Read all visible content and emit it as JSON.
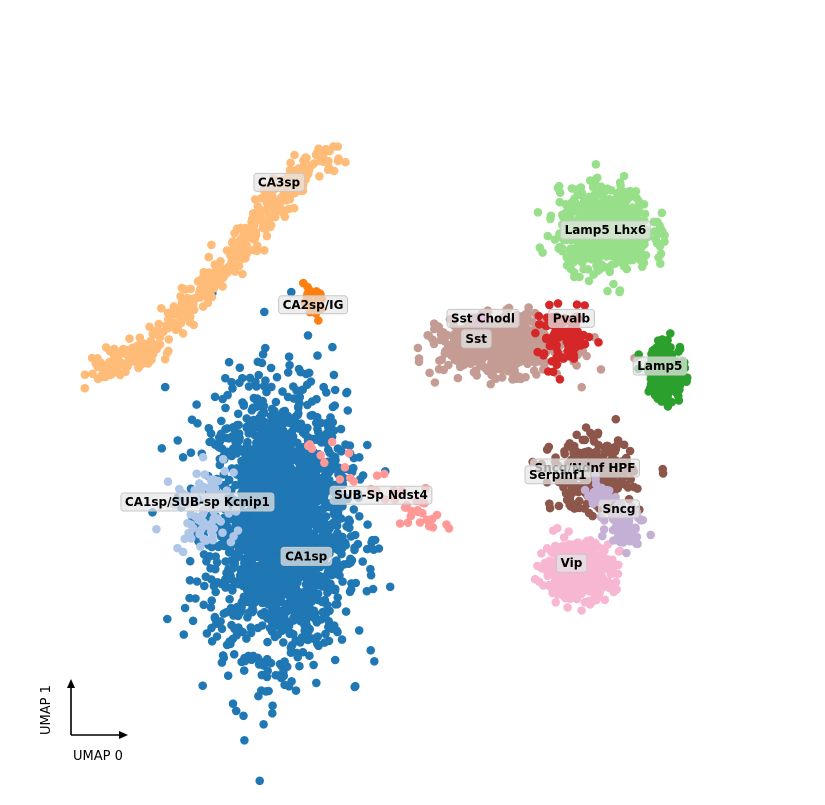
{
  "chart_data": {
    "type": "scatter",
    "title": "",
    "xlabel": "UMAP 0",
    "ylabel": "UMAP 1",
    "xlim": [
      0,
      10
    ],
    "ylim": [
      0,
      10
    ],
    "grid": false,
    "legend": "on-data",
    "clusters": [
      {
        "name": "CA3sp",
        "color": "#ffbb78",
        "center": [
          2.6,
          8.0
        ],
        "count": 420,
        "shape": "streak",
        "path": [
          [
            0.3,
            5.4
          ],
          [
            1.0,
            5.7
          ],
          [
            1.8,
            6.5
          ],
          [
            2.5,
            7.3
          ],
          [
            3.0,
            8.0
          ],
          [
            3.8,
            8.7
          ]
        ]
      },
      {
        "name": "CA2sp/IG",
        "color": "#ff7f0e",
        "center": [
          3.5,
          6.4
        ],
        "count": 26,
        "shape": "blob",
        "spread": [
          0.25,
          0.35
        ]
      },
      {
        "name": "CA1sp",
        "color": "#1f77b4",
        "center": [
          3.0,
          3.2
        ],
        "count": 2300,
        "shape": "blob",
        "spread": [
          1.1,
          2.1
        ]
      },
      {
        "name": "CA1sp/SUB-sp Kcnip1",
        "color": "#aec7e8",
        "center": [
          1.9,
          3.4
        ],
        "count": 90,
        "shape": "blob",
        "spread": [
          0.5,
          0.7
        ]
      },
      {
        "name": "SUB-Sp Ndst4",
        "color": "#ff9896",
        "center": [
          4.5,
          3.7
        ],
        "count": 42,
        "shape": "streak",
        "path": [
          [
            3.5,
            4.3
          ],
          [
            4.2,
            3.8
          ],
          [
            4.8,
            3.5
          ],
          [
            5.5,
            3.1
          ]
        ]
      },
      {
        "name": "Lamp5 Lhx6",
        "color": "#98df8a",
        "center": [
          7.8,
          7.5
        ],
        "count": 700,
        "shape": "blob",
        "spread": [
          0.75,
          0.65
        ]
      },
      {
        "name": "Sst Chodl",
        "color": "#e377c2",
        "center": [
          6.0,
          6.2
        ],
        "count": 4,
        "shape": "blob",
        "spread": [
          0.1,
          0.1
        ]
      },
      {
        "name": "Sst",
        "color": "#c49c94",
        "center": [
          6.3,
          5.8
        ],
        "count": 620,
        "shape": "blob",
        "spread": [
          1.0,
          0.45
        ]
      },
      {
        "name": "Pvalb",
        "color": "#d62728",
        "center": [
          7.2,
          5.9
        ],
        "count": 95,
        "shape": "blob",
        "spread": [
          0.45,
          0.45
        ]
      },
      {
        "name": "Lamp5",
        "color": "#2ca02c",
        "center": [
          8.7,
          5.4
        ],
        "count": 190,
        "shape": "blob",
        "spread": [
          0.3,
          0.5
        ]
      },
      {
        "name": "Sncg/Ndnf HPF",
        "color": "#8c564b",
        "center": [
          7.6,
          3.9
        ],
        "count": 310,
        "shape": "blob",
        "spread": [
          0.65,
          0.55
        ]
      },
      {
        "name": "Serpinf1",
        "color": "#c5b0d5",
        "center": [
          7.7,
          3.6
        ],
        "count": 30,
        "shape": "blob",
        "spread": [
          0.25,
          0.2
        ]
      },
      {
        "name": "Sncg",
        "color": "#c5b0d5",
        "center": [
          8.1,
          3.2
        ],
        "count": 75,
        "shape": "blob",
        "spread": [
          0.3,
          0.35
        ]
      },
      {
        "name": "Vip",
        "color": "#f7b6d2",
        "center": [
          7.4,
          2.5
        ],
        "count": 520,
        "shape": "blob",
        "spread": [
          0.55,
          0.45
        ]
      }
    ],
    "labels": [
      {
        "text": "CA3sp",
        "x": 3.0,
        "y": 8.2
      },
      {
        "text": "CA2sp/IG",
        "x": 3.5,
        "y": 6.4
      },
      {
        "text": "Sst Chodl",
        "x": 6.0,
        "y": 6.2
      },
      {
        "text": "Sst",
        "x": 5.9,
        "y": 5.9
      },
      {
        "text": "Pvalb",
        "x": 7.3,
        "y": 6.2
      },
      {
        "text": "Lamp5 Lhx6",
        "x": 7.8,
        "y": 7.5
      },
      {
        "text": "Lamp5",
        "x": 8.6,
        "y": 5.5
      },
      {
        "text": "Sncg/Ndnf HPF",
        "x": 7.5,
        "y": 4.0
      },
      {
        "text": "Serpinf1",
        "x": 7.1,
        "y": 3.9
      },
      {
        "text": "Sncg",
        "x": 8.0,
        "y": 3.4
      },
      {
        "text": "Vip",
        "x": 7.3,
        "y": 2.6
      },
      {
        "text": "CA1sp/SUB-sp Kcnip1",
        "x": 1.8,
        "y": 3.5
      },
      {
        "text": "SUB-Sp Ndst4",
        "x": 4.5,
        "y": 3.6
      },
      {
        "text": "CA1sp",
        "x": 3.4,
        "y": 2.7
      }
    ]
  }
}
